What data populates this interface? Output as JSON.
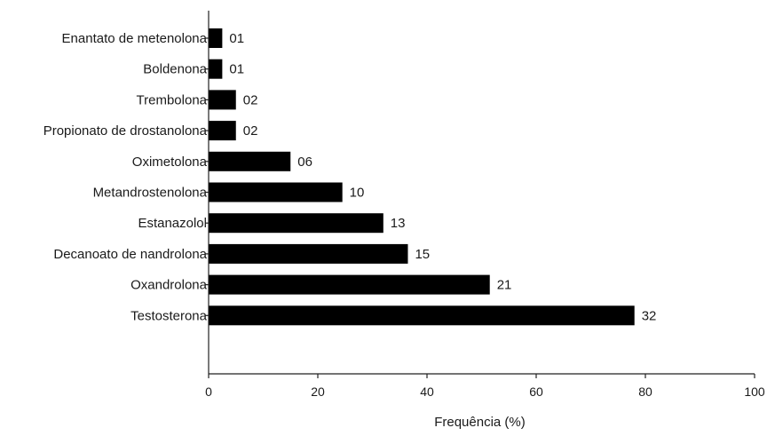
{
  "chart_data": {
    "type": "bar",
    "orientation": "horizontal",
    "title": "",
    "xlabel": "Frequência (%)",
    "ylabel": "",
    "xlim": [
      0,
      100
    ],
    "xticks": [
      "0",
      "20",
      "40",
      "60",
      "80",
      "100"
    ],
    "grid": false,
    "legend": "none",
    "bar_color": "#000000",
    "categories": [
      "Enantato de metenolona",
      "Boldenona",
      "Trembolona",
      "Propionato de drostanolona",
      "Oximetolona",
      "Metandrostenolona",
      "Estanazolol",
      "Decanoato de nandrolona",
      "Oxandrolona",
      "Testosterona"
    ],
    "values": [
      2.5,
      2.5,
      5,
      5,
      15,
      24.5,
      32,
      36.5,
      51.5,
      78
    ],
    "data_labels": [
      "01",
      "01",
      "02",
      "02",
      "06",
      "10",
      "13",
      "15",
      "21",
      "32"
    ]
  }
}
